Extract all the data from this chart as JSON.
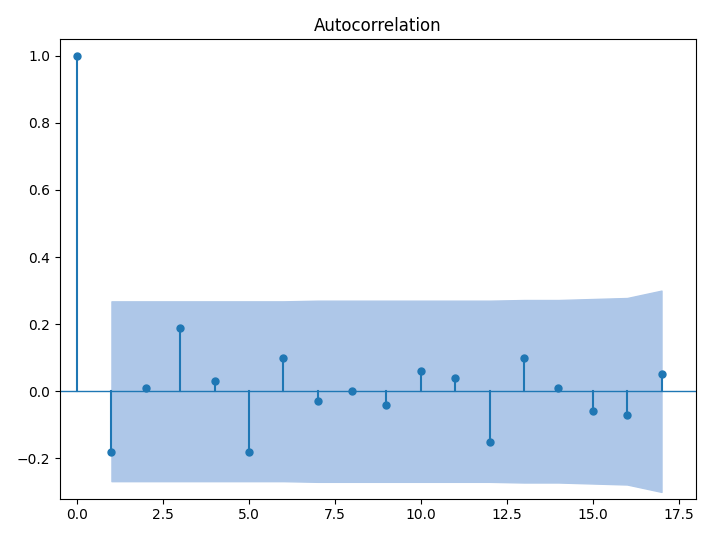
{
  "title": "Autocorrelation",
  "lags": [
    0,
    1,
    2,
    3,
    4,
    5,
    6,
    7,
    8,
    9,
    10,
    11,
    12,
    13,
    14,
    15,
    16,
    17
  ],
  "acf_values": [
    1.0,
    -0.18,
    0.01,
    0.19,
    0.03,
    -0.18,
    0.1,
    -0.03,
    0.0,
    -0.04,
    0.06,
    0.04,
    -0.15,
    0.1,
    0.01,
    -0.06,
    -0.07,
    0.05
  ],
  "conf_upper": [
    0.268,
    0.268,
    0.268,
    0.268,
    0.268,
    0.268,
    0.268,
    0.27,
    0.27,
    0.27,
    0.27,
    0.27,
    0.27,
    0.272,
    0.272,
    0.275,
    0.278,
    0.3
  ],
  "conf_lower": [
    -0.268,
    -0.268,
    -0.268,
    -0.268,
    -0.268,
    -0.268,
    -0.268,
    -0.27,
    -0.27,
    -0.27,
    -0.27,
    -0.27,
    -0.27,
    -0.272,
    -0.272,
    -0.275,
    -0.278,
    -0.3
  ],
  "line_color": "#1f77b4",
  "fill_color": "#aec7e8",
  "ylim": [
    -0.32,
    1.05
  ],
  "xlim": [
    -0.5,
    18.0
  ],
  "figsize": [
    7.13,
    5.39
  ],
  "dpi": 100,
  "title_fontsize": 12,
  "xticks": [
    0.0,
    2.5,
    5.0,
    7.5,
    10.0,
    12.5,
    15.0,
    17.5
  ],
  "yticks": [
    -0.2,
    0.0,
    0.2,
    0.4,
    0.6,
    0.8,
    1.0
  ]
}
